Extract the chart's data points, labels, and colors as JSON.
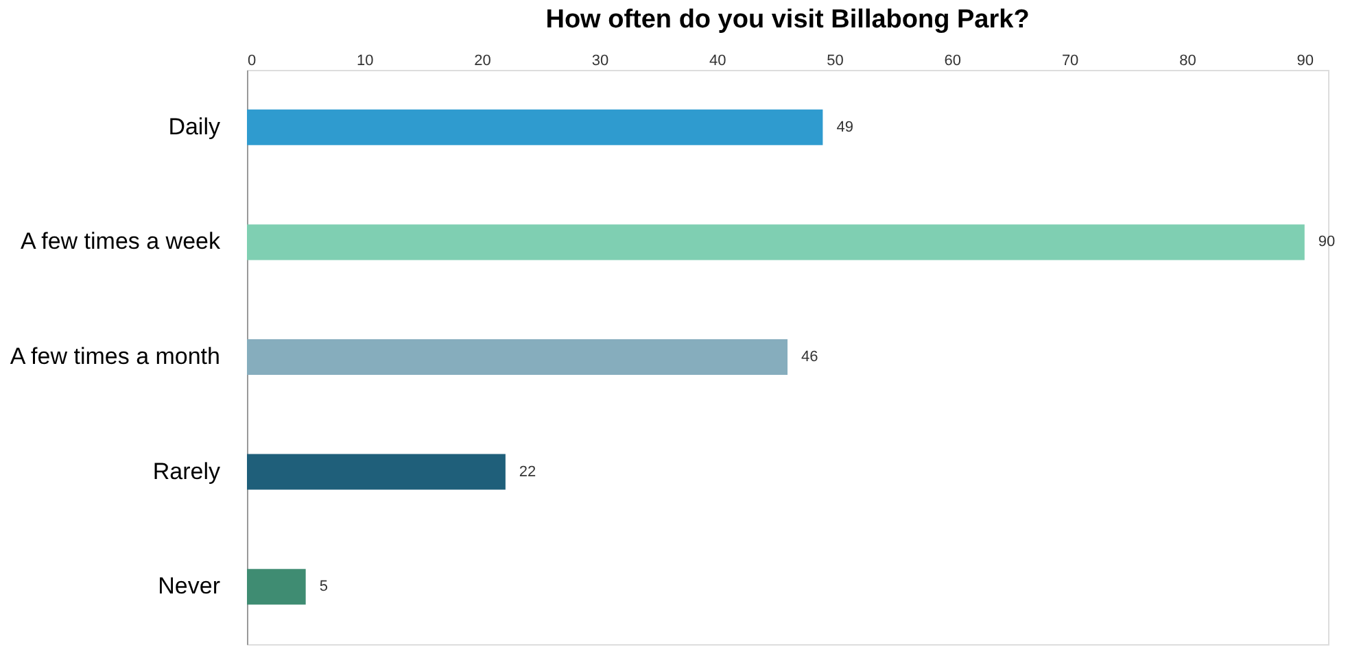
{
  "chart_data": {
    "type": "bar",
    "orientation": "horizontal",
    "title": "How often do you visit Billabong Park?",
    "categories": [
      "Daily",
      "A few times a week",
      "A few times a month",
      "Rarely",
      "Never"
    ],
    "values": [
      49,
      90,
      46,
      22,
      5
    ],
    "colors": [
      "#2f9bcf",
      "#7fcfb2",
      "#86adbd",
      "#1f5f7a",
      "#3f8c72"
    ],
    "xlim": [
      0,
      92
    ],
    "xticks": [
      0,
      10,
      20,
      30,
      40,
      50,
      60,
      70,
      80,
      90
    ],
    "data_labels": true,
    "grid": false
  }
}
